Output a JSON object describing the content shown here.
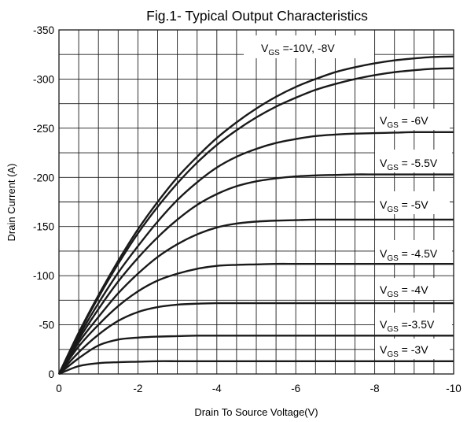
{
  "chart_data": {
    "type": "line",
    "title": "Fig.1- Typical Output Characteristics",
    "xlabel": "Drain To Source Voltage(V)",
    "ylabel": "Drain Current (A)",
    "xlim": [
      0,
      -10
    ],
    "ylim": [
      0,
      -350
    ],
    "x_ticks": [
      "0",
      "-2",
      "-4",
      "-6",
      "-8",
      "-10"
    ],
    "y_ticks": [
      "0",
      "-50",
      "-100",
      "-150",
      "-200",
      "-250",
      "-300",
      "-350"
    ],
    "grid": true,
    "x": [
      0,
      -0.5,
      -1,
      -1.5,
      -2,
      -2.5,
      -3,
      -3.5,
      -4,
      -4.5,
      -5,
      -5.5,
      -6,
      -6.5,
      -7,
      -7.5,
      -8,
      -8.5,
      -9,
      -9.5,
      -10
    ],
    "series": [
      {
        "name": "VGS=-10V",
        "values": [
          0,
          -42,
          -80,
          -115,
          -147,
          -175,
          -200,
          -221,
          -240,
          -256,
          -270,
          -282,
          -292,
          -300,
          -307,
          -312,
          -316,
          -319,
          -321,
          -322.5,
          -323
        ]
      },
      {
        "name": "VGS=-8V",
        "values": [
          0,
          -41,
          -78,
          -112,
          -143,
          -170,
          -194,
          -215,
          -233,
          -248,
          -261,
          -272,
          -281,
          -289,
          -295,
          -300,
          -304,
          -307,
          -309,
          -310.5,
          -311
        ]
      },
      {
        "name": "VGS=-6V",
        "values": [
          0,
          -38,
          -72,
          -103,
          -130,
          -155,
          -177,
          -195,
          -210,
          -221,
          -229,
          -235,
          -239,
          -242,
          -243.5,
          -244.5,
          -245,
          -245.5,
          -246,
          -246,
          -246
        ]
      },
      {
        "name": "VGS=-5.5V",
        "values": [
          0,
          -35,
          -66,
          -94,
          -118,
          -139,
          -157,
          -172,
          -183,
          -191,
          -196,
          -199,
          -201,
          -202,
          -202.5,
          -203,
          -203,
          -203,
          -203,
          -203,
          -203
        ]
      },
      {
        "name": "VGS=-5V",
        "values": [
          0,
          -32,
          -58,
          -82,
          -102,
          -119,
          -132,
          -142,
          -149,
          -153,
          -155,
          -156,
          -156.5,
          -157,
          -157,
          -157,
          -157,
          -157,
          -157,
          -157,
          -157
        ]
      },
      {
        "name": "VGS=-4.5V",
        "values": [
          0,
          -28,
          -50,
          -69,
          -84,
          -95,
          -102,
          -107,
          -110,
          -111,
          -111.5,
          -112,
          -112,
          -112,
          -112,
          -112,
          -112,
          -112,
          -112,
          -112,
          -112
        ]
      },
      {
        "name": "VGS=-4V",
        "values": [
          0,
          -22,
          -40,
          -54,
          -63,
          -68,
          -70.5,
          -71.5,
          -72,
          -72,
          -72,
          -72,
          -72,
          -72,
          -72,
          -72,
          -72,
          -72,
          -72,
          -72,
          -72
        ]
      },
      {
        "name": "VGS=-3.5V",
        "values": [
          0,
          -16,
          -29,
          -35,
          -37,
          -38,
          -38.5,
          -39,
          -39,
          -39,
          -39,
          -39,
          -39,
          -39,
          -39,
          -39,
          -39,
          -39,
          -39,
          -39,
          -39
        ]
      },
      {
        "name": "VGS=-3V",
        "values": [
          0,
          -8,
          -11,
          -12,
          -12.5,
          -13,
          -13,
          -13,
          -13,
          -13,
          -13,
          -13,
          -13,
          -13,
          -13,
          -13,
          -13,
          -13,
          -13,
          -13,
          -13
        ]
      }
    ],
    "curve_labels": [
      {
        "sub": "GS",
        "pre": "V",
        "post": " =-10V,  -8V"
      },
      {
        "sub": "GS",
        "pre": "V",
        "post": " = -6V"
      },
      {
        "sub": "GS",
        "pre": "V",
        "post": " = -5.5V"
      },
      {
        "sub": "GS",
        "pre": "V",
        "post": " = -5V"
      },
      {
        "sub": "GS",
        "pre": "V",
        "post": " = -4.5V"
      },
      {
        "sub": "GS",
        "pre": "V",
        "post": " = -4V"
      },
      {
        "sub": "GS",
        "pre": "V",
        "post": " =-3.5V"
      },
      {
        "sub": "GS",
        "pre": "V",
        "post": " = -3V"
      }
    ],
    "line_color": "#1a1a1a",
    "grid_color": "#1a1a1a"
  }
}
